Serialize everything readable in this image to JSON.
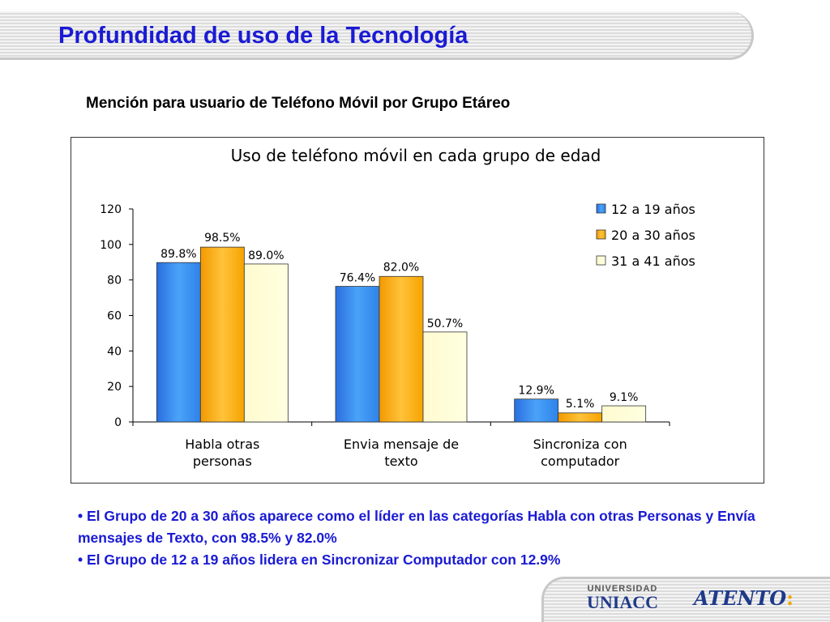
{
  "slide": {
    "title": "Profundidad de uso de la Tecnología",
    "subtitle": "Mención para usuario de Teléfono Móvil por Grupo Etáreo",
    "bullets": [
      "• El Grupo de 20 a 30 años aparece como el líder en las categorías Habla con otras Personas y Envía mensajes de Texto,  con 98.5% y 82.0%",
      "• El Grupo de 12 a 19 años lidera en Sincronizar Computador con 12.9%"
    ],
    "logos": {
      "universidad_small": "UNIVERSIDAD",
      "universidad_big": "UNIACC",
      "atento": "ATENTO",
      "atento_mark": ":"
    }
  },
  "chart_data": {
    "type": "bar",
    "title": "Uso de teléfono móvil en cada grupo de edad",
    "categories": [
      [
        "Habla otras",
        "personas"
      ],
      [
        "Envia mensaje de",
        "texto"
      ],
      [
        "Sincroniza con",
        "computador"
      ]
    ],
    "series": [
      {
        "name": "12 a 19 años",
        "values": [
          89.8,
          76.4,
          12.9
        ],
        "labels": [
          "89.8%",
          "76.4%",
          "12.9%"
        ],
        "color": "#3a8ef0"
      },
      {
        "name": "20 a 30 años",
        "values": [
          98.5,
          82.0,
          5.1
        ],
        "labels": [
          "98.5%",
          "82.0%",
          "5.1%"
        ],
        "color": "#f7a800"
      },
      {
        "name": "31 a 41 años",
        "values": [
          89.0,
          50.7,
          9.1
        ],
        "labels": [
          "89.0%",
          "50.7%",
          "9.1%"
        ],
        "color": "#ffffcc"
      }
    ],
    "yticks": [
      "0",
      "20",
      "40",
      "60",
      "80",
      "100",
      "120"
    ],
    "ylim": [
      0,
      120
    ],
    "legend_position": "top-right",
    "grid": false
  }
}
